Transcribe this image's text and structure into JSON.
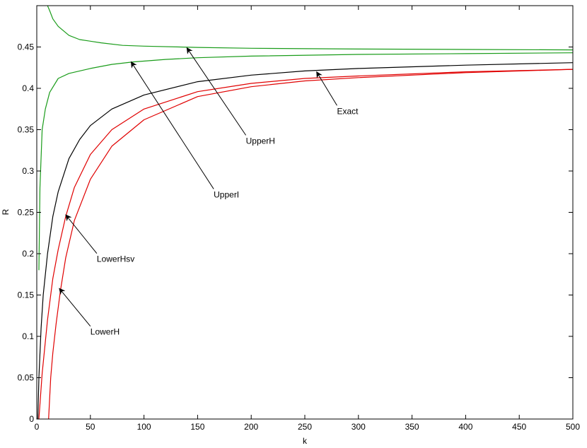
{
  "chart_data": {
    "type": "line",
    "title": "",
    "xlabel": "k",
    "ylabel": "R",
    "xlim": [
      0,
      500
    ],
    "ylim": [
      0,
      0.5
    ],
    "grid": false,
    "x_ticks": [
      0,
      50,
      100,
      150,
      200,
      250,
      300,
      350,
      400,
      450,
      500
    ],
    "x_tick_labels": [
      "0",
      "50",
      "100",
      "150",
      "200",
      "250",
      "300",
      "350",
      "400",
      "450",
      "500"
    ],
    "y_ticks": [
      0,
      0.05,
      0.1,
      0.15,
      0.2,
      0.25,
      0.3,
      0.35,
      0.4,
      0.45
    ],
    "y_tick_labels": [
      "0",
      "0.05",
      "0.1",
      "0.15",
      "0.2",
      "0.25",
      "0.3",
      "0.35",
      "0.4",
      "0.45"
    ],
    "series": [
      {
        "name": "UpperH",
        "color": "#1a9c1a",
        "x": [
          10,
          12,
          15,
          20,
          30,
          40,
          60,
          80,
          100,
          150,
          200,
          300,
          400,
          500
        ],
        "y": [
          0.5,
          0.494,
          0.484,
          0.475,
          0.464,
          0.459,
          0.455,
          0.452,
          0.451,
          0.4495,
          0.4485,
          0.4475,
          0.447,
          0.4465
        ]
      },
      {
        "name": "UpperI",
        "color": "#1a9c1a",
        "x": [
          2,
          3,
          5,
          8,
          12,
          20,
          30,
          50,
          70,
          90,
          120,
          150,
          200,
          300,
          400,
          500
        ],
        "y": [
          0.18,
          0.28,
          0.35,
          0.375,
          0.395,
          0.412,
          0.418,
          0.424,
          0.429,
          0.432,
          0.435,
          0.437,
          0.439,
          0.441,
          0.442,
          0.443
        ]
      },
      {
        "name": "Exact",
        "color": "#000000",
        "x": [
          1,
          2,
          4,
          6,
          10,
          15,
          20,
          30,
          40,
          50,
          70,
          100,
          150,
          200,
          250,
          300,
          400,
          500
        ],
        "y": [
          0.0,
          0.05,
          0.11,
          0.15,
          0.2,
          0.245,
          0.275,
          0.315,
          0.338,
          0.355,
          0.375,
          0.392,
          0.408,
          0.416,
          0.421,
          0.424,
          0.428,
          0.431
        ]
      },
      {
        "name": "LowerHsv",
        "color": "#e00000",
        "x": [
          2,
          5,
          10,
          15,
          20,
          27,
          35,
          50,
          70,
          100,
          150,
          200,
          250,
          300,
          400,
          500
        ],
        "y": [
          0.0,
          0.055,
          0.12,
          0.17,
          0.205,
          0.245,
          0.28,
          0.32,
          0.35,
          0.375,
          0.396,
          0.406,
          0.412,
          0.415,
          0.42,
          0.423
        ]
      },
      {
        "name": "LowerH",
        "color": "#e00000",
        "x": [
          11,
          13,
          15,
          18,
          22,
          27,
          35,
          50,
          70,
          100,
          150,
          200,
          250,
          300,
          400,
          500
        ],
        "y": [
          0.0,
          0.05,
          0.08,
          0.115,
          0.155,
          0.195,
          0.24,
          0.29,
          0.33,
          0.362,
          0.39,
          0.402,
          0.409,
          0.413,
          0.419,
          0.423
        ]
      }
    ],
    "annotations": [
      {
        "text": "UpperH",
        "x": 195,
        "y": 0.333,
        "arrow_to": [
          140,
          0.449
        ]
      },
      {
        "text": "UpperI",
        "x": 165,
        "y": 0.268,
        "arrow_to": [
          88,
          0.432
        ]
      },
      {
        "text": "Exact",
        "x": 280,
        "y": 0.369,
        "arrow_to": [
          261,
          0.42
        ]
      },
      {
        "text": "LowerHsv",
        "x": 56,
        "y": 0.19,
        "arrow_to": [
          27,
          0.247
        ]
      },
      {
        "text": "LowerH",
        "x": 50,
        "y": 0.102,
        "arrow_to": [
          21,
          0.158
        ]
      }
    ]
  }
}
